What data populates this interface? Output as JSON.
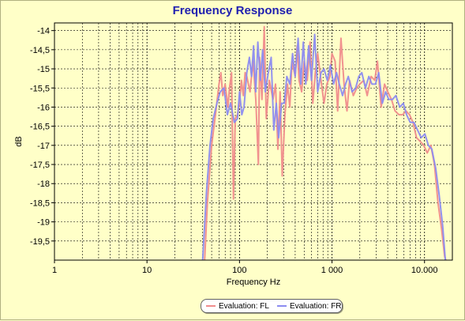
{
  "chart_data": {
    "type": "line",
    "title": "Frequency Response",
    "xlabel": "Frequency Hz",
    "ylabel": "dB",
    "x_scale": "log",
    "xlim": [
      1,
      20000
    ],
    "ylim": [
      -20,
      -13.8
    ],
    "x_ticks": [
      {
        "value": 1,
        "label": "1"
      },
      {
        "value": 10,
        "label": "10"
      },
      {
        "value": 100,
        "label": "100"
      },
      {
        "value": 1000,
        "label": "1 000"
      },
      {
        "value": 10000,
        "label": "10.000"
      }
    ],
    "y_ticks": [
      {
        "value": -14,
        "label": "-14"
      },
      {
        "value": -14.5,
        "label": "-14,5"
      },
      {
        "value": -15,
        "label": "-15"
      },
      {
        "value": -15.5,
        "label": "-15,5"
      },
      {
        "value": -16,
        "label": "-16"
      },
      {
        "value": -16.5,
        "label": "-16,5"
      },
      {
        "value": -17,
        "label": "-17"
      },
      {
        "value": -17.5,
        "label": "-17,5"
      },
      {
        "value": -18,
        "label": "-18"
      },
      {
        "value": -18.5,
        "label": "-18,5"
      },
      {
        "value": -19,
        "label": "-19"
      },
      {
        "value": -19.5,
        "label": "-19,5"
      }
    ],
    "grid": true,
    "legend_position": "bottom-center",
    "series": [
      {
        "name": "Evaluation: FL",
        "color": "#f08c8c",
        "points": [
          [
            42,
            -20
          ],
          [
            45,
            -18.5
          ],
          [
            50,
            -17
          ],
          [
            55,
            -16.2
          ],
          [
            60,
            -15.4
          ],
          [
            63,
            -15.1
          ],
          [
            66,
            -15.7
          ],
          [
            70,
            -15.4
          ],
          [
            75,
            -16
          ],
          [
            78,
            -15.5
          ],
          [
            82,
            -15.1
          ],
          [
            86,
            -18.4
          ],
          [
            90,
            -16.3
          ],
          [
            95,
            -16.2
          ],
          [
            100,
            -15.9
          ],
          [
            105,
            -15.3
          ],
          [
            110,
            -15.7
          ],
          [
            115,
            -15.1
          ],
          [
            120,
            -15.2
          ],
          [
            130,
            -15.6
          ],
          [
            140,
            -14.8
          ],
          [
            150,
            -15.8
          ],
          [
            160,
            -17.5
          ],
          [
            165,
            -14.7
          ],
          [
            175,
            -15.8
          ],
          [
            185,
            -13.9
          ],
          [
            195,
            -16.3
          ],
          [
            210,
            -15.3
          ],
          [
            230,
            -15.8
          ],
          [
            245,
            -15.4
          ],
          [
            260,
            -17.1
          ],
          [
            275,
            -15.6
          ],
          [
            290,
            -17.8
          ],
          [
            310,
            -16.2
          ],
          [
            330,
            -15.4
          ],
          [
            350,
            -16
          ],
          [
            370,
            -14.8
          ],
          [
            400,
            -15.2
          ],
          [
            420,
            -14.4
          ],
          [
            440,
            -15.3
          ],
          [
            470,
            -15.6
          ],
          [
            500,
            -14.8
          ],
          [
            540,
            -15.3
          ],
          [
            580,
            -14.3
          ],
          [
            620,
            -15.9
          ],
          [
            660,
            -15.1
          ],
          [
            700,
            -14.6
          ],
          [
            760,
            -15.3
          ],
          [
            820,
            -15.9
          ],
          [
            880,
            -15.4
          ],
          [
            950,
            -15.2
          ],
          [
            1000,
            -14.6
          ],
          [
            1080,
            -14.8
          ],
          [
            1150,
            -16.1
          ],
          [
            1250,
            -14.2
          ],
          [
            1350,
            -15.4
          ],
          [
            1450,
            -16.1
          ],
          [
            1550,
            -15.3
          ],
          [
            1700,
            -15.7
          ],
          [
            1850,
            -15.5
          ],
          [
            2000,
            -15.4
          ],
          [
            2200,
            -15.3
          ],
          [
            2400,
            -15.7
          ],
          [
            2650,
            -15.2
          ],
          [
            2900,
            -15.3
          ],
          [
            3100,
            -14.8
          ],
          [
            3400,
            -16
          ],
          [
            3700,
            -15.4
          ],
          [
            4000,
            -15.6
          ],
          [
            4400,
            -15.8
          ],
          [
            4800,
            -16.1
          ],
          [
            5300,
            -16.2
          ],
          [
            5800,
            -16.2
          ],
          [
            6300,
            -16.1
          ],
          [
            6900,
            -16.2
          ],
          [
            7500,
            -16.4
          ],
          [
            8200,
            -16.8
          ],
          [
            9000,
            -16.9
          ],
          [
            9800,
            -17
          ],
          [
            10700,
            -17.2
          ],
          [
            11700,
            -17
          ],
          [
            12800,
            -17.5
          ],
          [
            14000,
            -18.5
          ],
          [
            15300,
            -19.2
          ],
          [
            16500,
            -19.9
          ],
          [
            17000,
            -20
          ]
        ]
      },
      {
        "name": "Evaluation: FR",
        "color": "#8c8cf0",
        "points": [
          [
            40,
            -20
          ],
          [
            44,
            -18.2
          ],
          [
            48,
            -17
          ],
          [
            52,
            -16.3
          ],
          [
            57,
            -15.9
          ],
          [
            62,
            -15.6
          ],
          [
            68,
            -15.5
          ],
          [
            74,
            -16.2
          ],
          [
            80,
            -15.9
          ],
          [
            88,
            -16.4
          ],
          [
            95,
            -16.3
          ],
          [
            100,
            -15.6
          ],
          [
            106,
            -16.2
          ],
          [
            112,
            -16
          ],
          [
            120,
            -15.1
          ],
          [
            128,
            -14.7
          ],
          [
            135,
            -15.2
          ],
          [
            142,
            -14.4
          ],
          [
            150,
            -15.6
          ],
          [
            158,
            -14.3
          ],
          [
            168,
            -15.3
          ],
          [
            178,
            -14.5
          ],
          [
            190,
            -15.6
          ],
          [
            205,
            -15.1
          ],
          [
            220,
            -14.7
          ],
          [
            235,
            -16.6
          ],
          [
            250,
            -15.9
          ],
          [
            265,
            -16.8
          ],
          [
            285,
            -15.9
          ],
          [
            305,
            -15.9
          ],
          [
            325,
            -15.2
          ],
          [
            350,
            -15.4
          ],
          [
            375,
            -14.6
          ],
          [
            400,
            -15.2
          ],
          [
            430,
            -14.2
          ],
          [
            460,
            -15.4
          ],
          [
            490,
            -14.3
          ],
          [
            520,
            -15.4
          ],
          [
            560,
            -14.4
          ],
          [
            600,
            -15.3
          ],
          [
            650,
            -14.1
          ],
          [
            700,
            -15.6
          ],
          [
            760,
            -15.1
          ],
          [
            820,
            -15
          ],
          [
            890,
            -15.3
          ],
          [
            960,
            -14.9
          ],
          [
            1040,
            -15.4
          ],
          [
            1120,
            -15.1
          ],
          [
            1200,
            -15.4
          ],
          [
            1300,
            -15.7
          ],
          [
            1400,
            -15.4
          ],
          [
            1500,
            -15.2
          ],
          [
            1650,
            -15.6
          ],
          [
            1800,
            -15.5
          ],
          [
            1950,
            -15.2
          ],
          [
            2100,
            -15.1
          ],
          [
            2300,
            -15.5
          ],
          [
            2500,
            -15.2
          ],
          [
            2700,
            -15.4
          ],
          [
            2950,
            -15.4
          ],
          [
            3200,
            -15.1
          ],
          [
            3500,
            -15.9
          ],
          [
            3800,
            -15.6
          ],
          [
            4100,
            -15.8
          ],
          [
            4500,
            -15.8
          ],
          [
            4900,
            -15.7
          ],
          [
            5400,
            -16
          ],
          [
            5900,
            -15.9
          ],
          [
            6400,
            -16.2
          ],
          [
            7000,
            -16.4
          ],
          [
            7700,
            -16.4
          ],
          [
            8400,
            -16.6
          ],
          [
            9200,
            -16.8
          ],
          [
            10100,
            -16.7
          ],
          [
            11000,
            -17
          ],
          [
            12000,
            -17.1
          ],
          [
            13200,
            -17.6
          ],
          [
            14400,
            -18.3
          ],
          [
            15700,
            -19.1
          ],
          [
            16800,
            -20
          ]
        ]
      }
    ]
  }
}
